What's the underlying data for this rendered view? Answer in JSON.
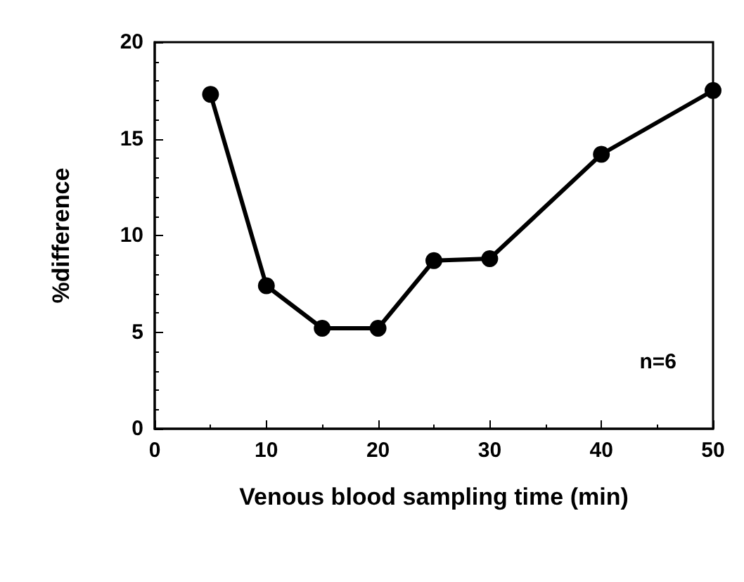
{
  "chart_data": {
    "type": "line",
    "xlabel": "Venous blood sampling time (min)",
    "ylabel": "%difference",
    "x": [
      5,
      10,
      15,
      20,
      25,
      30,
      40,
      50
    ],
    "series": [
      {
        "color": "#000000",
        "values": [
          17.3,
          7.4,
          5.2,
          5.2,
          8.7,
          8.8,
          14.2,
          17.5
        ]
      }
    ],
    "xlim": [
      0,
      50
    ],
    "xticks": [
      0,
      10,
      20,
      30,
      40,
      50
    ],
    "ylim": [
      0,
      20
    ],
    "yticks": [
      0,
      5,
      10,
      15,
      20
    ],
    "marker": "circle",
    "line_style": "solid",
    "grid": false,
    "annotations": [
      "n=6"
    ]
  }
}
